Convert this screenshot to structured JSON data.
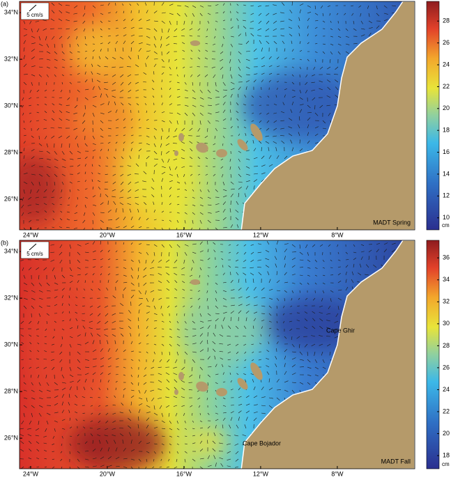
{
  "panels": [
    {
      "label": "(a)",
      "scale_label": "5 cm/s",
      "title": "MADT Spring",
      "lon_lim": [
        -24.58,
        -3.96
      ],
      "lat_lim": [
        24.69,
        34.48
      ],
      "lon_ticks": [
        {
          "value": -24,
          "label": "24°W"
        },
        {
          "value": -20,
          "label": "20°W"
        },
        {
          "value": -16,
          "label": "16°W"
        },
        {
          "value": -12,
          "label": "12°W"
        },
        {
          "value": -8,
          "label": "8°W"
        }
      ],
      "lat_ticks": [
        {
          "value": 34,
          "label": "34°N"
        },
        {
          "value": 32,
          "label": "32°N"
        },
        {
          "value": 30,
          "label": "30°N"
        },
        {
          "value": 28,
          "label": "28°N"
        },
        {
          "value": 26,
          "label": "26°N"
        }
      ],
      "colorbar": {
        "unit": "cm",
        "lim": [
          8.9,
          29.8
        ],
        "ticks": [
          10,
          12,
          14,
          16,
          18,
          20,
          22,
          24,
          26,
          28
        ]
      },
      "annotations": []
    },
    {
      "label": "(b)",
      "scale_label": "5 cm/s",
      "title": "MADT Fall",
      "lon_lim": [
        -24.58,
        -3.96
      ],
      "lat_lim": [
        24.69,
        34.48
      ],
      "lon_ticks": [
        {
          "value": -24,
          "label": "24°W"
        },
        {
          "value": -20,
          "label": "20°W"
        },
        {
          "value": -16,
          "label": "16°W"
        },
        {
          "value": -12,
          "label": "12°W"
        },
        {
          "value": -8,
          "label": "8°W"
        }
      ],
      "lat_ticks": [
        {
          "value": 34,
          "label": "34°N"
        },
        {
          "value": 32,
          "label": "32°N"
        },
        {
          "value": 30,
          "label": "30°N"
        },
        {
          "value": 28,
          "label": "28°N"
        },
        {
          "value": 26,
          "label": "26°N"
        }
      ],
      "colorbar": {
        "unit": "cm",
        "lim": [
          16.8,
          37.6
        ],
        "ticks": [
          18,
          20,
          22,
          24,
          26,
          28,
          30,
          32,
          34,
          36
        ]
      },
      "annotations": [
        "Cape Ghir",
        "Cape Bojador"
      ]
    }
  ]
}
